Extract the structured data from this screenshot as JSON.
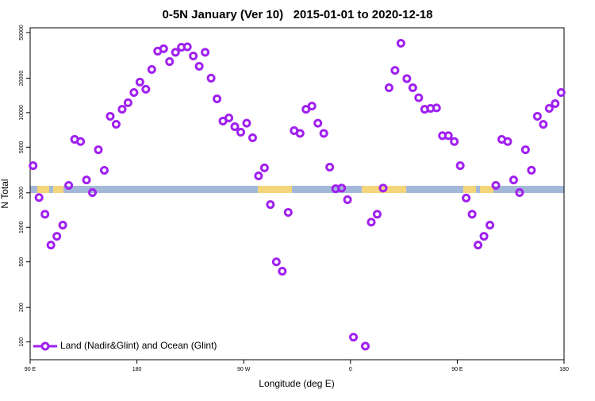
{
  "chart_data": {
    "type": "scatter",
    "title": "0-5N January (Ver 10)   2015-01-01 to 2020-12-18",
    "x_label": "Longitude (deg E)",
    "y_label": "N Total",
    "log_y": true,
    "legend_position": "bottom-left",
    "xlim": [
      90,
      540
    ],
    "xticks": [
      {
        "value": 90,
        "label": "90 E"
      },
      180,
      {
        "value": 270,
        "label": "90 W"
      },
      {
        "value": 360,
        "label": "0"
      },
      {
        "value": 450,
        "label": "90 E"
      },
      {
        "value": 540,
        "label": "180"
      }
    ],
    "ylim": [
      70,
      55000
    ],
    "yticks": [
      100,
      200,
      500,
      1000,
      2000,
      5000,
      10000,
      20000,
      50000
    ],
    "series": [
      {
        "name": "Land (Nadir&Glint) and Ocean (Glint)",
        "color": "#a020f0",
        "x": [
          92.5,
          97.5,
          102.5,
          107.5,
          112.5,
          117.5,
          122.5,
          127.5,
          132.5,
          137.5,
          142.5,
          147.5,
          152.5,
          157.5,
          162.5,
          167.5,
          172.5,
          177.5,
          182.5,
          187.5,
          192.5,
          197.5,
          202.5,
          207.5,
          212.5,
          217.5,
          222.5,
          227.5,
          232.5,
          237.5,
          242.5,
          247.5,
          252.5,
          257.5,
          262.5,
          267.5,
          272.5,
          277.5,
          282.5,
          287.5,
          292.5,
          297.5,
          302.5,
          307.5,
          312.5,
          317.5,
          322.5,
          327.5,
          332.5,
          337.5,
          342.5,
          347.5,
          352.5,
          357.5,
          362.5,
          372.5,
          377.5,
          382.5,
          387.5,
          392.5,
          397.5,
          402.5,
          407.5,
          412.5,
          417.5,
          422.5,
          427.5,
          432.5,
          437.5,
          442.5,
          447.5,
          452.5,
          457.5,
          462.5,
          467.5,
          472.5,
          477.5,
          482.5,
          487.5,
          492.5,
          497.5,
          502.5,
          507.5,
          512.5,
          517.5,
          522.5,
          527.5,
          532.5,
          537.5
        ],
        "values": [
          3450,
          1820,
          1300,
          700,
          835,
          1045,
          2320,
          5850,
          5600,
          2590,
          2010,
          4750,
          3140,
          9300,
          7920,
          10700,
          12200,
          15000,
          18500,
          16000,
          23800,
          34400,
          36100,
          27900,
          33600,
          37200,
          37500,
          31200,
          25400,
          33600,
          20000,
          13200,
          8450,
          9000,
          7550,
          6750,
          8100,
          6040,
          2810,
          3300,
          1580,
          500,
          414,
          1350,
          6970,
          6600,
          10700,
          11400,
          8100,
          6600,
          3350,
          2170,
          2200,
          1740,
          110,
          92,
          1110,
          1300,
          2200,
          16500,
          23400,
          40300,
          19800,
          16500,
          13500,
          10700,
          10900,
          11000,
          6300,
          6300,
          5600,
          3450,
          1800,
          1300,
          700,
          835,
          1045,
          2320,
          5850,
          5600,
          2590,
          2010,
          4750,
          3150,
          9300,
          7900,
          10900,
          12000,
          15000
        ]
      }
    ]
  }
}
